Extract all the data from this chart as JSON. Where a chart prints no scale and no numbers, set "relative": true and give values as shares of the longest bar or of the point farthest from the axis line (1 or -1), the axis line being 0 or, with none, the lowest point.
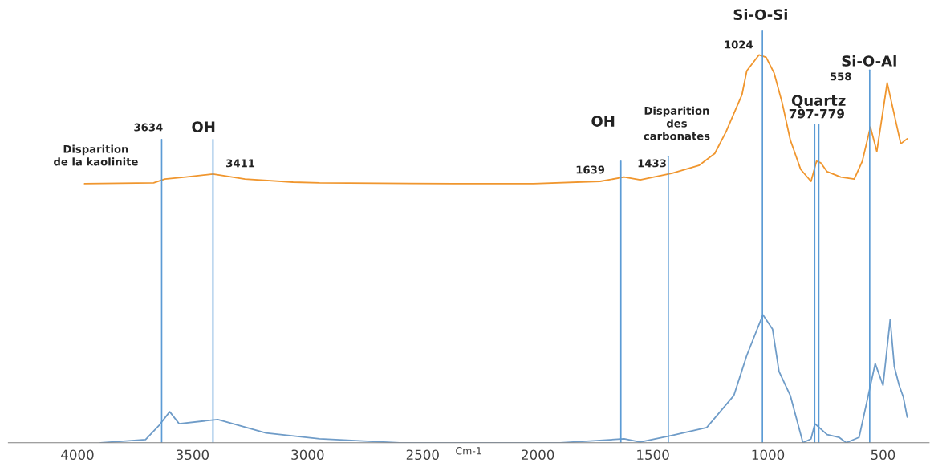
{
  "chart_data": {
    "type": "line",
    "relative": true,
    "xlabel": "Cm-1",
    "xlim": [
      4300,
      300
    ],
    "xticks": [
      4000,
      3500,
      3000,
      2500,
      2000,
      1500,
      1000,
      500
    ],
    "grid": false,
    "legend": false,
    "marker": "none",
    "line_style": "solid",
    "series": [
      {
        "color": "#f0962e",
        "x": [
          3969,
          3669,
          3620,
          3530,
          3411,
          3272,
          3063,
          2948,
          2366,
          2018,
          1729,
          1625,
          1555,
          1416,
          1300,
          1231,
          1182,
          1113,
          1092,
          1039,
          1008,
          973,
          938,
          903,
          858,
          813,
          789,
          771,
          743,
          708,
          684,
          625,
          590,
          555,
          527,
          482,
          458,
          423,
          395
        ],
        "values": [
          0.668,
          0.67,
          0.68,
          0.685,
          0.693,
          0.68,
          0.672,
          0.67,
          0.668,
          0.668,
          0.674,
          0.685,
          0.678,
          0.695,
          0.715,
          0.746,
          0.802,
          0.897,
          0.959,
          1.0,
          0.994,
          0.953,
          0.876,
          0.781,
          0.705,
          0.674,
          0.726,
          0.722,
          0.699,
          0.691,
          0.685,
          0.68,
          0.726,
          0.814,
          0.751,
          0.928,
          0.864,
          0.771,
          0.784
        ]
      },
      {
        "color": "#6f9cc8",
        "x": [
          3900,
          3704,
          3645,
          3599,
          3558,
          3390,
          3181,
          2948,
          2600,
          1903,
          1625,
          1555,
          1416,
          1266,
          1148,
          1092,
          1022,
          980,
          952,
          903,
          848,
          813,
          796,
          743,
          691,
          660,
          604,
          534,
          500,
          469,
          451,
          430,
          412,
          395
        ],
        "values": [
          0,
          0.008,
          0.045,
          0.08,
          0.049,
          0.06,
          0.025,
          0.01,
          0,
          0,
          0.01,
          0.002,
          0.019,
          0.039,
          0.122,
          0.225,
          0.33,
          0.293,
          0.184,
          0.122,
          0,
          0.01,
          0.049,
          0.021,
          0.014,
          0,
          0.014,
          0.204,
          0.148,
          0.318,
          0.196,
          0.148,
          0.118,
          0.066
        ]
      }
    ],
    "ref_lines": [
      {
        "axis": "x",
        "value": 3634,
        "color": "#5b9bd5"
      },
      {
        "axis": "x",
        "value": 3411,
        "color": "#5b9bd5"
      },
      {
        "axis": "x",
        "value": 1639,
        "color": "#5b9bd5"
      },
      {
        "axis": "x",
        "value": 1433,
        "color": "#5b9bd5"
      },
      {
        "axis": "x",
        "value": 1024,
        "color": "#5b9bd5"
      },
      {
        "axis": "x",
        "value": 797,
        "color": "#5b9bd5"
      },
      {
        "axis": "x",
        "value": 779,
        "color": "#5b9bd5"
      },
      {
        "axis": "x",
        "value": 558,
        "color": "#5b9bd5"
      }
    ],
    "annotations": [
      "Disparition\nde la kaolinite",
      "3634",
      "OH",
      "3411",
      "OH",
      "1639",
      "1433",
      "Disparition\ndes\ncarbonates",
      "Si-O-Si",
      "1024",
      "Quartz",
      "797-779",
      "Si-O-Al",
      "558"
    ]
  }
}
